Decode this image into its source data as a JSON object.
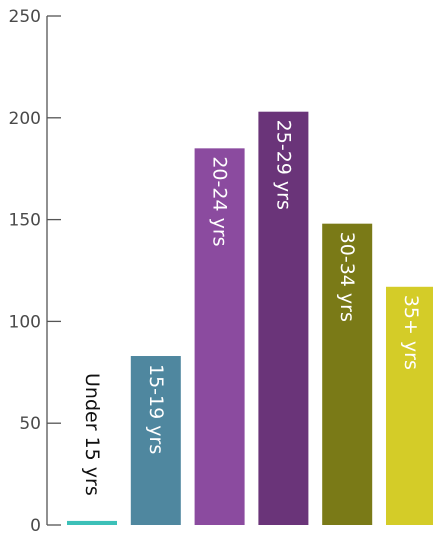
{
  "chart_data": {
    "type": "bar",
    "title": "",
    "xlabel": "",
    "ylabel": "",
    "ylim": [
      0,
      250
    ],
    "yticks": [
      0,
      50,
      100,
      150,
      200,
      250
    ],
    "grid": false,
    "categories": [
      "Under 15 yrs",
      "15-19 yrs",
      "20-24 yrs",
      "25-29 yrs",
      "30-34 yrs",
      "35+ yrs"
    ],
    "values": [
      2,
      83,
      185,
      203,
      148,
      117
    ],
    "colors": [
      "#3cc0b8",
      "#4f879f",
      "#8b4b9f",
      "#6a3479",
      "#7a7a17",
      "#d4cc28"
    ],
    "label_colors": [
      "#111111",
      "#ffffff",
      "#ffffff",
      "#ffffff",
      "#ffffff",
      "#ffffff"
    ]
  }
}
